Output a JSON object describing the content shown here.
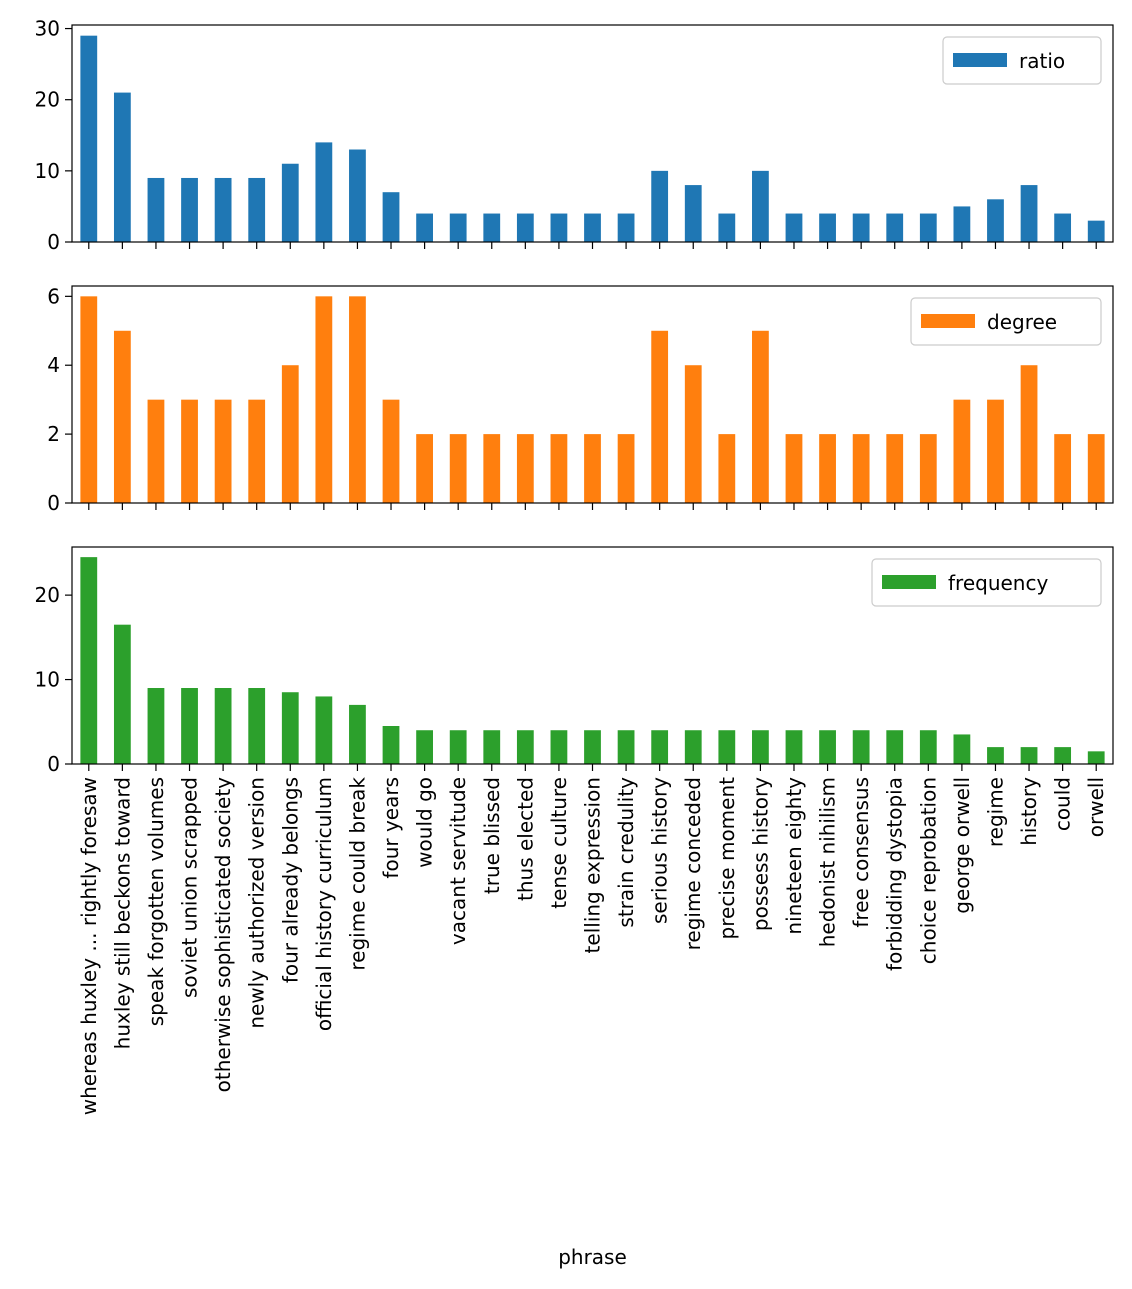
{
  "chart_data": {
    "type": "bar",
    "xlabel": "phrase",
    "categories": [
      "whereas huxley ... rightly foresaw",
      "huxley still beckons toward",
      "speak forgotten volumes",
      "soviet union scrapped",
      "otherwise sophisticated society",
      "newly authorized version",
      "four already belongs",
      "official history curriculum",
      "regime could break",
      "four years",
      "would go",
      "vacant servitude",
      "true blissed",
      "thus elected",
      "tense culture",
      "telling expression",
      "strain credulity",
      "serious history",
      "regime conceded",
      "precise moment",
      "possess history",
      "nineteen eighty",
      "hedonist nihilism",
      "free consensus",
      "forbidding dystopia",
      "choice reprobation",
      "george orwell",
      "regime",
      "history",
      "could",
      "orwell"
    ],
    "subplots": [
      {
        "series_name": "ratio",
        "color": "#1f77b4",
        "ylim": [
          0,
          30.5
        ],
        "yticks": [
          0,
          10,
          20,
          30
        ],
        "legend_position": "upper right",
        "values": [
          29,
          21,
          9,
          9,
          9,
          9,
          11,
          14,
          13,
          7,
          4,
          4,
          4,
          4,
          4,
          4,
          4,
          10,
          8,
          4,
          10,
          4,
          4,
          4,
          4,
          4,
          5,
          6,
          8,
          4,
          3
        ]
      },
      {
        "series_name": "degree",
        "color": "#ff7f0e",
        "ylim": [
          0,
          6.3
        ],
        "yticks": [
          0,
          2,
          4,
          6
        ],
        "legend_position": "upper right",
        "values": [
          6,
          5,
          3,
          3,
          3,
          3,
          4,
          6,
          6,
          3,
          2,
          2,
          2,
          2,
          2,
          2,
          2,
          5,
          4,
          2,
          5,
          2,
          2,
          2,
          2,
          2,
          3,
          3,
          4,
          2,
          2
        ]
      },
      {
        "series_name": "frequency",
        "color": "#2ca02c",
        "ylim": [
          0,
          25.7
        ],
        "yticks": [
          0,
          10,
          20
        ],
        "legend_position": "upper right",
        "values": [
          24.5,
          16.5,
          9,
          9,
          9,
          9,
          8.5,
          8,
          7,
          4.5,
          4,
          4,
          4,
          4,
          4,
          4,
          4,
          4,
          4,
          4,
          4,
          4,
          4,
          4,
          4,
          4,
          3.5,
          2,
          2,
          2,
          1.5
        ]
      }
    ]
  }
}
